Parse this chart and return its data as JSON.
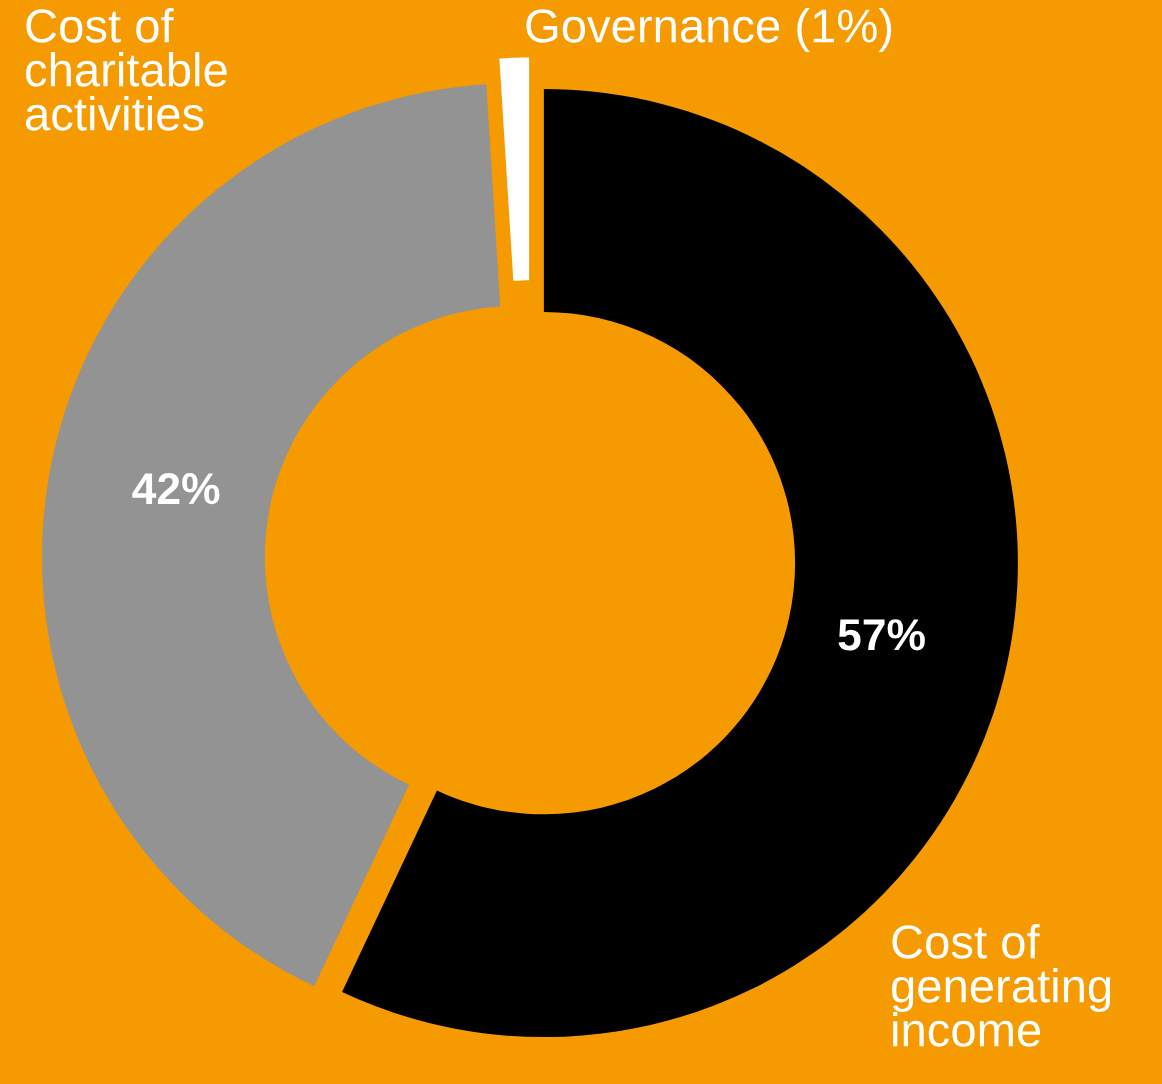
{
  "chart_data": {
    "type": "donut",
    "categories": [
      "Cost of generating income",
      "Cost of charitable activities",
      "Governance (1%)"
    ],
    "values": [
      57,
      42,
      1
    ],
    "colors": [
      "#000000",
      "#939393",
      "#ffffff"
    ],
    "value_labels": [
      "57%",
      "42%",
      null
    ],
    "legend": false
  }
}
